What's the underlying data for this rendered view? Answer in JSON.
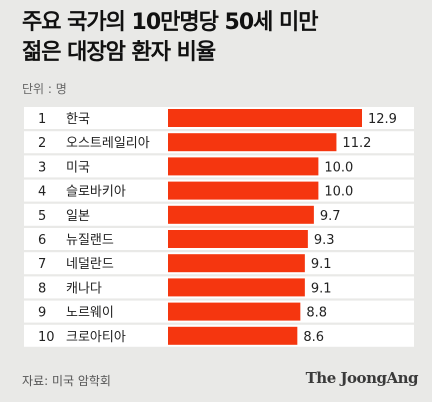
{
  "header": {
    "title_line1": "주요 국가의 10만명당 50세 미만",
    "title_line2": "젊은 대장암 환자 비율",
    "unit": "단위 : 명"
  },
  "footer": {
    "source": "자료: 미국 암학회",
    "brand": "The JoongAng"
  },
  "colors": {
    "bar": "#f5360f",
    "row_bg": "#ffffff",
    "background": "#e9e9e7"
  },
  "chart_data": {
    "type": "bar",
    "orientation": "horizontal",
    "title": "주요 국가의 10만명당 50세 미만 젊은 대장암 환자 비율",
    "unit": "단위 : 명",
    "ranks": [
      "1",
      "2",
      "3",
      "4",
      "5",
      "6",
      "7",
      "8",
      "9",
      "10"
    ],
    "categories": [
      "한국",
      "오스트레일리아",
      "미국",
      "슬로바키아",
      "일본",
      "뉴질랜드",
      "네덜란드",
      "캐나다",
      "노르웨이",
      "크로아티아"
    ],
    "values": [
      12.9,
      11.2,
      10.0,
      10.0,
      9.7,
      9.3,
      9.1,
      9.1,
      8.8,
      8.6
    ],
    "value_labels": [
      "12.9",
      "11.2",
      "10.0",
      "10.0",
      "9.7",
      "9.3",
      "9.1",
      "9.1",
      "8.8",
      "8.6"
    ],
    "xlim": [
      0,
      12.9
    ],
    "grid": false,
    "legend": "none"
  }
}
